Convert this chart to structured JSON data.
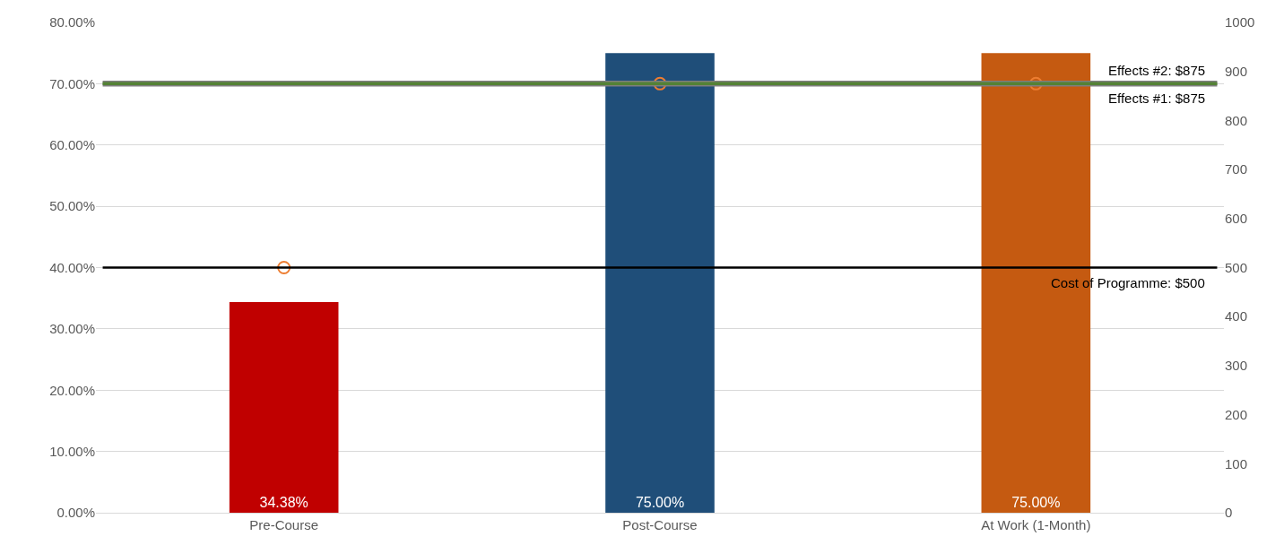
{
  "chart_data": {
    "type": "bar",
    "categories": [
      "Pre-Course",
      "Post-Course",
      "At Work (1-Month)"
    ],
    "series": [
      {
        "colors": [
          "#c00000",
          "#1f4e79",
          "#c55a11"
        ],
        "values": [
          34.38,
          75,
          75
        ],
        "value_labels": [
          "34.38%",
          "75.00%",
          "75.00%"
        ]
      },
      {
        "type": "scatter",
        "axis": "y2",
        "color": "#ed7d31",
        "marker": "circle",
        "x": [
          "Pre-Course",
          "Post-Course",
          "At Work (1-Month)"
        ],
        "values": [
          500,
          875,
          875
        ]
      }
    ],
    "ylim": [
      0,
      80
    ],
    "yticks": [
      {
        "value": 0,
        "label": "0.00%"
      },
      {
        "value": 10,
        "label": "10.00%"
      },
      {
        "value": 20,
        "label": "20.00%"
      },
      {
        "value": 30,
        "label": "30.00%"
      },
      {
        "value": 40,
        "label": "40.00%"
      },
      {
        "value": 50,
        "label": "50.00%"
      },
      {
        "value": 60,
        "label": "60.00%"
      },
      {
        "value": 70,
        "label": "70.00%"
      },
      {
        "value": 80,
        "label": "80.00%"
      }
    ],
    "y2lim": [
      0,
      1000
    ],
    "y2ticks": [
      0,
      100,
      200,
      300,
      400,
      500,
      600,
      700,
      800,
      900,
      1000
    ],
    "ref_lines": [
      {
        "axis": "y2",
        "value": 875,
        "label": "Effects #2: $875",
        "color": "#7f7f7f"
      },
      {
        "axis": "y2",
        "value": 875,
        "label": "Effects #1: $875",
        "color": "#548235"
      },
      {
        "axis": "y2",
        "value": 500,
        "label": "Cost of Programme: $500",
        "color": "#000000"
      }
    ],
    "grid": "y"
  }
}
